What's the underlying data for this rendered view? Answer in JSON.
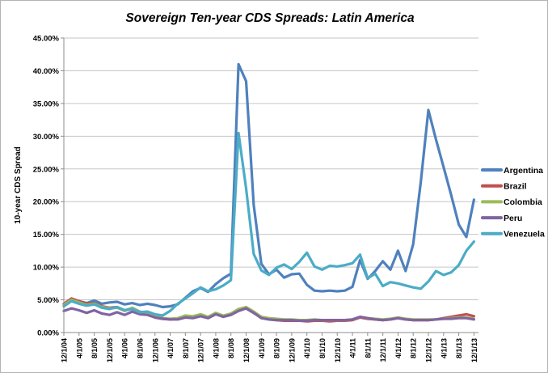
{
  "chart_data": {
    "type": "line",
    "title": "Sovereign Ten-year CDS Spreads: Latin America",
    "xlabel": "",
    "ylabel": "10-year CDS Spread",
    "y_values_unit": "percent",
    "ylim": [
      0,
      45
    ],
    "grid": true,
    "legend_position": "right",
    "y_tick_values": [
      0,
      5,
      10,
      15,
      20,
      25,
      30,
      35,
      40,
      45
    ],
    "y_tick_labels": [
      "0.00%",
      "5.00%",
      "10.00%",
      "15.00%",
      "20.00%",
      "25.00%",
      "30.00%",
      "35.00%",
      "40.00%",
      "45.00%"
    ],
    "x_tick_labels": [
      "12/1/04",
      "4/1/05",
      "8/1/05",
      "12/1/05",
      "4/1/06",
      "8/1/06",
      "12/1/06",
      "4/1/07",
      "8/1/07",
      "12/1/07",
      "4/1/08",
      "8/1/08",
      "12/1/08",
      "4/1/09",
      "8/1/09",
      "12/1/09",
      "4/1/10",
      "8/1/10",
      "12/1/10",
      "4/1/11",
      "8/1/11",
      "12/1/11",
      "4/1/12",
      "8/1/12",
      "12/1/12",
      "4/1/13",
      "8/1/13",
      "12/1/13"
    ],
    "points_per_tick": 2,
    "axis_color": "#8c8c8c",
    "gridline_color": "#c6c6c6",
    "series": [
      {
        "name": "Argentina",
        "color": "#4F81BD",
        "values": [
          4.2,
          5.0,
          4.8,
          4.5,
          4.9,
          4.4,
          4.6,
          4.7,
          4.3,
          4.5,
          4.2,
          4.4,
          4.2,
          3.9,
          4.0,
          4.3,
          5.3,
          6.3,
          6.8,
          6.2,
          7.4,
          8.3,
          9.0,
          41.0,
          38.4,
          19.5,
          10.5,
          8.9,
          9.6,
          8.4,
          8.9,
          9.0,
          7.3,
          6.4,
          6.3,
          6.4,
          6.3,
          6.4,
          7.0,
          11.1,
          8.2,
          9.4,
          10.9,
          9.6,
          12.5,
          9.4,
          13.5,
          23.0,
          34.0,
          29.5,
          25.3,
          21.0,
          16.5,
          14.6,
          20.3
        ]
      },
      {
        "name": "Brazil",
        "color": "#C0504D",
        "values": [
          4.4,
          5.2,
          4.8,
          4.4,
          4.5,
          4.0,
          3.8,
          3.9,
          3.4,
          3.7,
          3.1,
          3.0,
          2.3,
          2.1,
          2.0,
          2.1,
          2.4,
          2.3,
          2.6,
          2.3,
          2.9,
          2.5,
          2.8,
          3.4,
          3.7,
          3.0,
          2.3,
          2.0,
          1.9,
          1.8,
          1.8,
          1.8,
          1.7,
          1.8,
          1.8,
          1.7,
          1.8,
          1.8,
          1.9,
          2.3,
          2.1,
          2.0,
          1.9,
          2.0,
          2.2,
          2.0,
          1.9,
          1.9,
          1.9,
          2.0,
          2.2,
          2.4,
          2.6,
          2.8,
          2.5
        ]
      },
      {
        "name": "Colombia",
        "color": "#9BBB59",
        "values": [
          4.2,
          5.0,
          4.6,
          4.2,
          4.4,
          3.9,
          3.7,
          3.8,
          3.3,
          3.8,
          3.2,
          3.0,
          2.5,
          2.2,
          2.1,
          2.2,
          2.6,
          2.5,
          2.8,
          2.4,
          3.0,
          2.6,
          2.9,
          3.6,
          3.9,
          3.2,
          2.4,
          2.2,
          2.1,
          2.0,
          2.0,
          1.9,
          1.9,
          2.0,
          1.9,
          1.9,
          1.9,
          1.9,
          2.0,
          2.4,
          2.2,
          2.1,
          2.0,
          2.1,
          2.3,
          2.1,
          2.0,
          2.0,
          2.0,
          2.0,
          2.1,
          2.2,
          2.3,
          2.3,
          2.1
        ]
      },
      {
        "name": "Peru",
        "color": "#8064A2",
        "values": [
          3.3,
          3.7,
          3.4,
          3.0,
          3.4,
          2.9,
          2.7,
          3.1,
          2.7,
          3.2,
          2.8,
          2.7,
          2.3,
          2.1,
          2.0,
          2.0,
          2.3,
          2.2,
          2.5,
          2.2,
          2.8,
          2.4,
          2.7,
          3.3,
          3.7,
          3.0,
          2.2,
          2.0,
          1.9,
          1.9,
          1.9,
          1.8,
          1.8,
          1.9,
          1.9,
          1.9,
          1.9,
          1.9,
          2.0,
          2.4,
          2.2,
          2.0,
          1.9,
          2.0,
          2.2,
          2.0,
          1.9,
          1.9,
          1.9,
          2.0,
          2.1,
          2.1,
          2.2,
          2.2,
          2.0
        ]
      },
      {
        "name": "Venezuela",
        "color": "#4BACC6",
        "values": [
          4.0,
          4.8,
          4.4,
          4.1,
          4.3,
          3.8,
          3.6,
          3.9,
          3.4,
          3.6,
          3.1,
          3.2,
          2.8,
          2.6,
          3.3,
          4.4,
          5.2,
          6.0,
          6.9,
          6.3,
          6.6,
          7.2,
          8.0,
          30.5,
          22.0,
          12.0,
          9.5,
          8.8,
          9.9,
          10.4,
          9.7,
          10.8,
          12.2,
          10.1,
          9.6,
          10.2,
          10.1,
          10.3,
          10.6,
          11.9,
          8.3,
          9.0,
          7.1,
          7.7,
          7.5,
          7.2,
          6.9,
          6.7,
          7.8,
          9.4,
          8.8,
          9.2,
          10.3,
          12.5,
          13.9
        ]
      }
    ]
  }
}
